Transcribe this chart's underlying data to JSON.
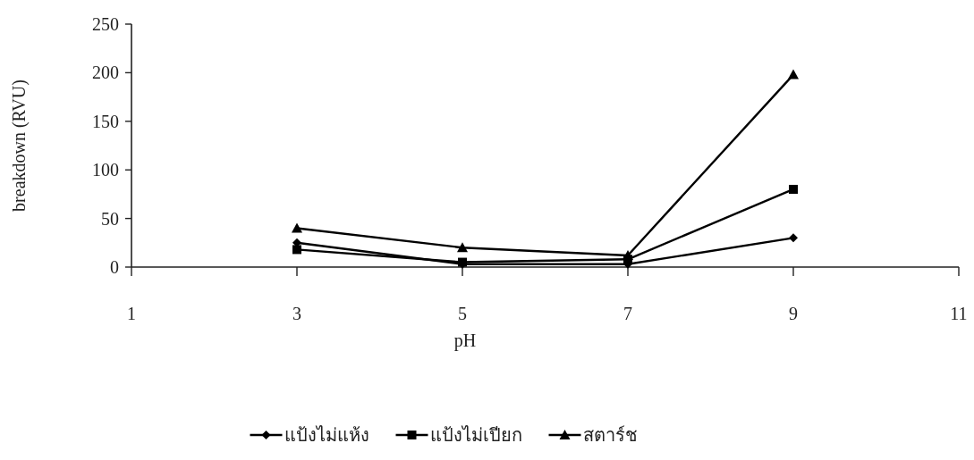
{
  "chart_data": {
    "type": "line",
    "xlabel": "pH",
    "ylabel": "breakdown (RVU)",
    "x": [
      3,
      5,
      7,
      9
    ],
    "xlim": [
      1,
      11
    ],
    "xticks": [
      1,
      3,
      5,
      7,
      9,
      11
    ],
    "ylim": [
      0,
      250
    ],
    "yticks": [
      0,
      50,
      100,
      150,
      200,
      250
    ],
    "grid": false,
    "legend": "bottom",
    "line_style": "solid",
    "series": [
      {
        "name": "แป้งไม่แห้ง",
        "color": "#000000",
        "marker": "diamond",
        "values": [
          25,
          3,
          3,
          30
        ]
      },
      {
        "name": "แป้งไม่เปียก",
        "color": "#000000",
        "marker": "square",
        "values": [
          18,
          5,
          8,
          80
        ]
      },
      {
        "name": "สตาร์ช",
        "color": "#000000",
        "marker": "triangle",
        "values": [
          40,
          20,
          12,
          198
        ]
      }
    ]
  }
}
